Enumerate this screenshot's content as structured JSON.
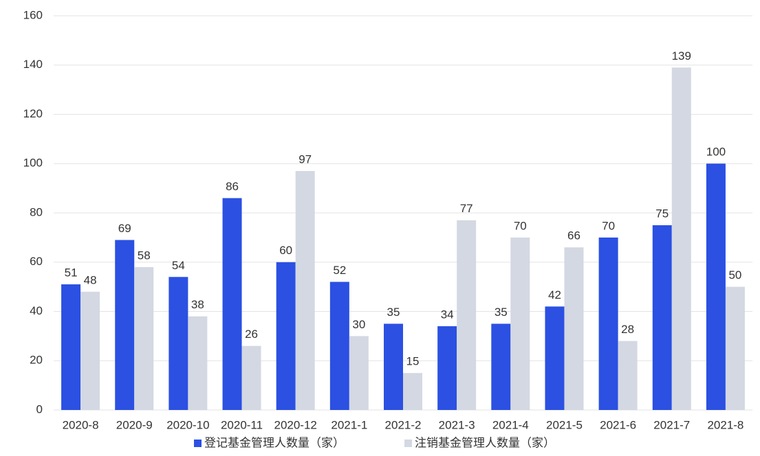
{
  "chart_data": {
    "type": "bar",
    "categories": [
      "2020-8",
      "2020-9",
      "2020-10",
      "2020-11",
      "2020-12",
      "2021-1",
      "2021-2",
      "2021-3",
      "2021-4",
      "2021-5",
      "2021-6",
      "2021-7",
      "2021-8"
    ],
    "series": [
      {
        "name": "登记基金管理人数量（家）",
        "color": "#2b50e2",
        "values": [
          51,
          69,
          54,
          86,
          60,
          52,
          35,
          34,
          35,
          42,
          70,
          75,
          100
        ]
      },
      {
        "name": "注销基金管理人数量（家）",
        "color": "#d3d8e2",
        "values": [
          48,
          58,
          38,
          26,
          97,
          30,
          15,
          77,
          70,
          66,
          28,
          139,
          50
        ]
      }
    ],
    "ylim": [
      0,
      160
    ],
    "yticks": [
      0,
      20,
      40,
      60,
      80,
      100,
      120,
      140,
      160
    ],
    "grid": true,
    "legend": "bottom"
  }
}
